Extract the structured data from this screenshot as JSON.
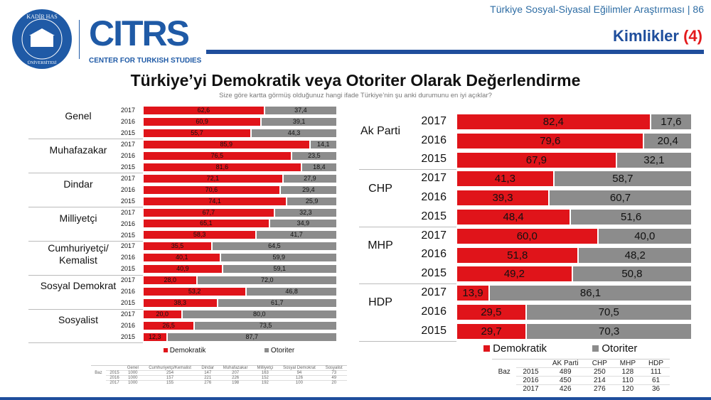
{
  "header": {
    "report": "Türkiye Sosyal-Siyasal Eğilimler Araştırması | 86",
    "section": "Kimlikler",
    "section_num": "(4)"
  },
  "logos": {
    "khas": "KADİR HAS 1997 ÜNİVERSİTESİ",
    "citrs": "CITRS",
    "citrs_sub": "CENTER FOR TURKISH STUDIES"
  },
  "title": "Türkiye’yi Demokratik veya Otoriter Olarak Değerlendirme",
  "subtitle": "Size göre kartta görmüş olduğunuz hangi ifade Türkiye’nin şu anki durumunu en iyi açıklar?",
  "colors": {
    "demokratik": "#e0141a",
    "otoriter": "#8c8c8c",
    "brand": "#1f4e9c"
  },
  "chart_data": [
    {
      "type": "bar",
      "orientation": "horizontal",
      "stacked": true,
      "xlim": [
        0,
        100
      ],
      "legend": "bottom",
      "series_names": [
        "Demokratik",
        "Otoriter"
      ],
      "groups": [
        {
          "label": "Genel",
          "rows": [
            {
              "year": "2017",
              "values": [
                "62,6",
                "37,4"
              ]
            },
            {
              "year": "2016",
              "values": [
                "60,9",
                "39,1"
              ]
            },
            {
              "year": "2015",
              "values": [
                "55,7",
                "44,3"
              ]
            }
          ]
        },
        {
          "label": "Muhafazakar",
          "rows": [
            {
              "year": "2017",
              "values": [
                "85,9",
                "14,1"
              ]
            },
            {
              "year": "2016",
              "values": [
                "76,5",
                "23,5"
              ]
            },
            {
              "year": "2015",
              "values": [
                "81,6",
                "18,4"
              ]
            }
          ]
        },
        {
          "label": "Dindar",
          "rows": [
            {
              "year": "2017",
              "values": [
                "72,1",
                "27,9"
              ]
            },
            {
              "year": "2016",
              "values": [
                "70,6",
                "29,4"
              ]
            },
            {
              "year": "2015",
              "values": [
                "74,1",
                "25,9"
              ]
            }
          ]
        },
        {
          "label": "Milliyetçi",
          "rows": [
            {
              "year": "2017",
              "values": [
                "67,7",
                "32,3"
              ]
            },
            {
              "year": "2016",
              "values": [
                "65,1",
                "34,9"
              ]
            },
            {
              "year": "2015",
              "values": [
                "58,3",
                "41,7"
              ]
            }
          ]
        },
        {
          "label": "Cumhuriyetçi/ Kemalist",
          "rows": [
            {
              "year": "2017",
              "values": [
                "35,5",
                "64,5"
              ]
            },
            {
              "year": "2016",
              "values": [
                "40,1",
                "59,9"
              ]
            },
            {
              "year": "2015",
              "values": [
                "40,9",
                "59,1"
              ]
            }
          ]
        },
        {
          "label": "Sosyal Demokrat",
          "rows": [
            {
              "year": "2017",
              "values": [
                "28,0",
                "72,0"
              ]
            },
            {
              "year": "2016",
              "values": [
                "53,2",
                "46,8"
              ]
            },
            {
              "year": "2015",
              "values": [
                "38,3",
                "61,7"
              ]
            }
          ]
        },
        {
          "label": "Sosyalist",
          "rows": [
            {
              "year": "2017",
              "values": [
                "20,0",
                "80,0"
              ]
            },
            {
              "year": "2016",
              "values": [
                "26,5",
                "73,5"
              ]
            },
            {
              "year": "2015",
              "values": [
                "12,3",
                "87,7"
              ]
            }
          ]
        }
      ]
    },
    {
      "type": "bar",
      "orientation": "horizontal",
      "stacked": true,
      "xlim": [
        0,
        100
      ],
      "legend": "bottom",
      "series_names": [
        "Demokratik",
        "Otoriter"
      ],
      "groups": [
        {
          "label": "Ak Parti",
          "rows": [
            {
              "year": "2017",
              "values": [
                "82,4",
                "17,6"
              ]
            },
            {
              "year": "2016",
              "values": [
                "79,6",
                "20,4"
              ]
            },
            {
              "year": "2015",
              "values": [
                "67,9",
                "32,1"
              ]
            }
          ]
        },
        {
          "label": "CHP",
          "rows": [
            {
              "year": "2017",
              "values": [
                "41,3",
                "58,7"
              ]
            },
            {
              "year": "2016",
              "values": [
                "39,3",
                "60,7"
              ]
            },
            {
              "year": "2015",
              "values": [
                "48,4",
                "51,6"
              ]
            }
          ]
        },
        {
          "label": "MHP",
          "rows": [
            {
              "year": "2017",
              "values": [
                "60,0",
                "40,0"
              ]
            },
            {
              "year": "2016",
              "values": [
                "51,8",
                "48,2"
              ]
            },
            {
              "year": "2015",
              "values": [
                "49,2",
                "50,8"
              ]
            }
          ]
        },
        {
          "label": "HDP",
          "rows": [
            {
              "year": "2017",
              "values": [
                "13,9",
                "86,1"
              ]
            },
            {
              "year": "2016",
              "values": [
                "29,5",
                "70,5"
              ]
            },
            {
              "year": "2015",
              "values": [
                "29,7",
                "70,3"
              ]
            }
          ]
        }
      ]
    }
  ],
  "base_left": {
    "label": "Baz",
    "headers": [
      "Genel",
      "Cumhuriyetçi/Kemalist",
      "Dindar",
      "Muhafazakar",
      "Milliyetçi",
      "Sosyal Demokrat",
      "Sosyalist"
    ],
    "rows": [
      [
        "2015",
        "1000",
        "254",
        "147",
        "207",
        "163",
        "94",
        "73"
      ],
      [
        "2016",
        "1000",
        "157",
        "221",
        "226",
        "152",
        "126",
        "49"
      ],
      [
        "2017",
        "1000",
        "155",
        "276",
        "198",
        "192",
        "100",
        "20"
      ]
    ]
  },
  "base_right": {
    "label": "Baz",
    "headers": [
      "AK Parti",
      "CHP",
      "MHP",
      "HDP"
    ],
    "rows": [
      [
        "2015",
        "489",
        "250",
        "128",
        "111"
      ],
      [
        "2016",
        "450",
        "214",
        "110",
        "61"
      ],
      [
        "2017",
        "426",
        "276",
        "120",
        "36"
      ]
    ]
  }
}
